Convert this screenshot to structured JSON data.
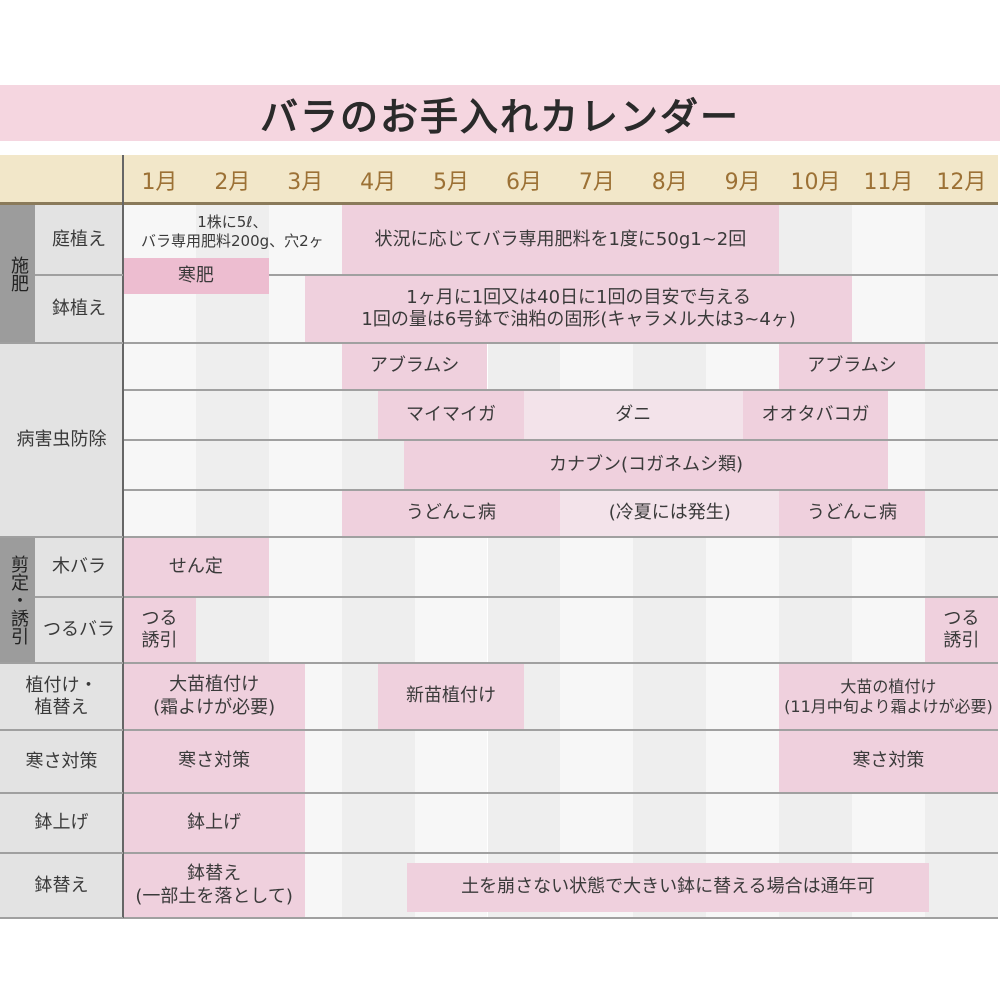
{
  "title": "バラのお手入れカレンダー",
  "months": [
    "1月",
    "2月",
    "3月",
    "4月",
    "5月",
    "6月",
    "7月",
    "8月",
    "9月",
    "10月",
    "11月",
    "12月"
  ],
  "colors": {
    "title_bg": "#f5d6e0",
    "header_bg": "#f2e7c9",
    "month_text": "#9c7135",
    "bar": "#efd0dd",
    "bar_light": "#f3e3ea",
    "bar_strong": "#edbdd0",
    "category_dark": "#9c9c9c",
    "label_bg": "#e3e3e3"
  },
  "categories": [
    {
      "id": "fertilizer",
      "label": "施肥"
    },
    {
      "id": "pruning",
      "label": "剪定・誘引"
    }
  ],
  "rows": [
    {
      "id": "niwa",
      "label": "庭植え"
    },
    {
      "id": "hachi",
      "label": "鉢植え"
    },
    {
      "id": "pest",
      "label": "病害虫防除"
    },
    {
      "id": "kibara",
      "label": "木バラ"
    },
    {
      "id": "tsuru",
      "label": "つるバラ"
    },
    {
      "id": "plant",
      "label": "植付け・\n植替え"
    },
    {
      "id": "cold",
      "label": "寒さ対策"
    },
    {
      "id": "hachiage",
      "label": "鉢上げ"
    },
    {
      "id": "hachigae",
      "label": "鉢替え"
    }
  ],
  "bars": [
    {
      "row": "niwa",
      "from": 4.0,
      "to": 10.0,
      "text": "状況に応じてバラ専用肥料を1度に50g1~2回",
      "tone": "bar"
    },
    {
      "row": "niwa_note",
      "from": 1.0,
      "to": 4.0,
      "text": "1株に5ℓ、\nバラ専用肥料200g、穴2ヶ",
      "tone": "none"
    },
    {
      "row": "kangoe",
      "from": 1.0,
      "to": 3.0,
      "text": "寒肥",
      "tone": "bar_strong"
    },
    {
      "row": "hachi",
      "from": 3.5,
      "to": 11.0,
      "text": "1ヶ月に1回又は40日に1回の目安で与える\n1回の量は6号鉢で油粕の固形(キャラメル大は3~4ヶ)",
      "tone": "bar"
    },
    {
      "row": "pest1",
      "from": 4.0,
      "to": 6.0,
      "text": "アブラムシ",
      "tone": "bar"
    },
    {
      "row": "pest1",
      "from": 10.0,
      "to": 12.0,
      "text": "アブラムシ",
      "tone": "bar"
    },
    {
      "row": "pest2",
      "from": 4.5,
      "to": 6.5,
      "text": "マイマイガ",
      "tone": "bar"
    },
    {
      "row": "pest2",
      "from": 6.5,
      "to": 9.5,
      "text": "ダニ",
      "tone": "bar_light"
    },
    {
      "row": "pest2",
      "from": 9.5,
      "to": 11.5,
      "text": "オオタバコガ",
      "tone": "bar"
    },
    {
      "row": "pest3",
      "from": 4.85,
      "to": 11.5,
      "text": "カナブン(コガネムシ類)",
      "tone": "bar"
    },
    {
      "row": "pest4",
      "from": 4.0,
      "to": 7.0,
      "text": "うどんこ病",
      "tone": "bar"
    },
    {
      "row": "pest4",
      "from": 7.0,
      "to": 10.0,
      "text": "(冷夏には発生)",
      "tone": "bar_light"
    },
    {
      "row": "pest4",
      "from": 10.0,
      "to": 12.0,
      "text": "うどんこ病",
      "tone": "bar"
    },
    {
      "row": "kibara",
      "from": 1.0,
      "to": 3.0,
      "text": "せん定",
      "tone": "bar"
    },
    {
      "row": "tsuru",
      "from": 1.0,
      "to": 2.0,
      "text": "つる\n誘引",
      "tone": "bar"
    },
    {
      "row": "tsuru",
      "from": 12.0,
      "to": 13.0,
      "text": "つる\n誘引",
      "tone": "bar"
    },
    {
      "row": "plant",
      "from": 1.0,
      "to": 3.5,
      "text": "大苗植付け\n(霜よけが必要)",
      "tone": "bar"
    },
    {
      "row": "plant",
      "from": 4.5,
      "to": 6.5,
      "text": "新苗植付け",
      "tone": "bar"
    },
    {
      "row": "plant",
      "from": 10.0,
      "to": 13.0,
      "text": "大苗の植付け\n(11月中旬より霜よけが必要)",
      "tone": "bar",
      "small": true
    },
    {
      "row": "cold",
      "from": 1.0,
      "to": 3.5,
      "text": "寒さ対策",
      "tone": "bar"
    },
    {
      "row": "cold",
      "from": 10.0,
      "to": 13.0,
      "text": "寒さ対策",
      "tone": "bar"
    },
    {
      "row": "hachiage",
      "from": 1.0,
      "to": 3.5,
      "text": "鉢上げ",
      "tone": "bar"
    },
    {
      "row": "hachigae",
      "from": 1.0,
      "to": 3.5,
      "text": "鉢替え\n(一部土を落として)",
      "tone": "bar"
    },
    {
      "row": "hachigae_inset",
      "from": 4.9,
      "to": 12.05,
      "text": "土を崩さない状態で大きい鉢に替える場合は通年可",
      "tone": "bar"
    }
  ]
}
